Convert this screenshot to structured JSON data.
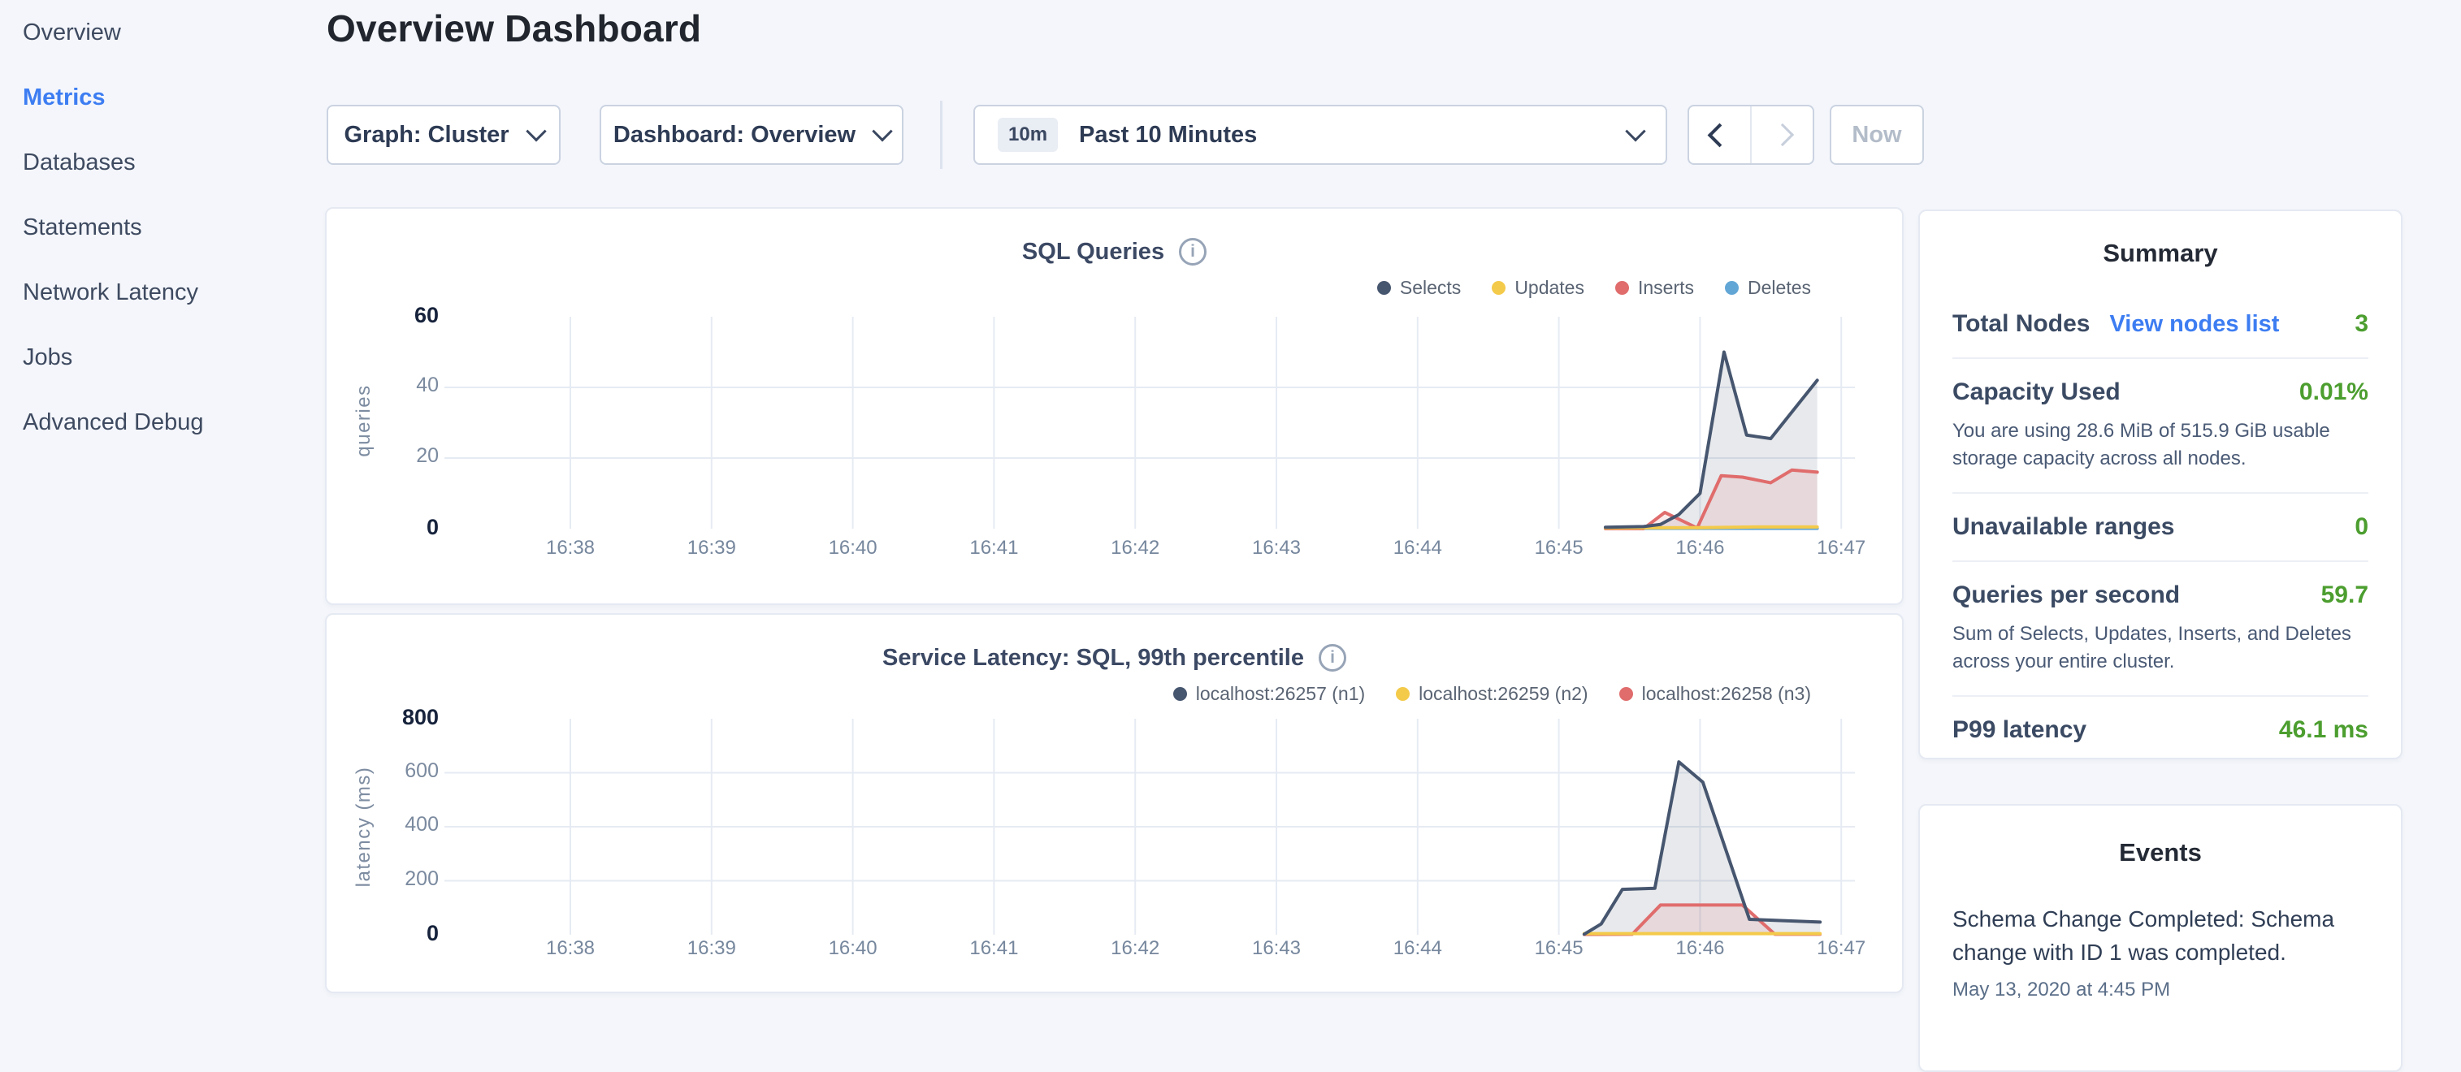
{
  "sidebar": {
    "items": [
      {
        "label": "Overview",
        "active": false
      },
      {
        "label": "Metrics",
        "active": true
      },
      {
        "label": "Databases",
        "active": false
      },
      {
        "label": "Statements",
        "active": false
      },
      {
        "label": "Network Latency",
        "active": false
      },
      {
        "label": "Jobs",
        "active": false
      },
      {
        "label": "Advanced Debug",
        "active": false
      }
    ]
  },
  "header": {
    "title": "Overview Dashboard"
  },
  "controls": {
    "graph_dropdown": "Graph: Cluster",
    "dashboard_dropdown": "Dashboard: Overview",
    "time_range_badge": "10m",
    "time_range_label": "Past 10 Minutes",
    "now_label": "Now"
  },
  "summary": {
    "title": "Summary",
    "rows": [
      {
        "label": "Total Nodes",
        "link": "View nodes list",
        "value": "3"
      },
      {
        "label": "Capacity Used",
        "value": "0.01%",
        "description": "You are using 28.6 MiB of 515.9 GiB usable storage capacity across all nodes."
      },
      {
        "label": "Unavailable ranges",
        "value": "0"
      },
      {
        "label": "Queries per second",
        "value": "59.7",
        "description": "Sum of Selects, Updates, Inserts, and Deletes across your entire cluster."
      },
      {
        "label": "P99 latency",
        "value": "46.1 ms"
      }
    ]
  },
  "events": {
    "title": "Events",
    "items": [
      {
        "message": "Schema Change Completed: Schema change with ID 1 was completed.",
        "timestamp": "May 13, 2020 at 4:45 PM"
      }
    ]
  },
  "icons": {
    "info": "i"
  },
  "colors": {
    "accent_blue": "#3d7df2",
    "value_green": "#4c9e2f",
    "gridline": "#e6ebf3",
    "series_navy": "#47566f",
    "series_yellow": "#f4ca4a",
    "series_red": "#e06c6c",
    "series_blue": "#62a6d6"
  },
  "chart_data": [
    {
      "type": "line",
      "title": "SQL Queries",
      "ylabel": "queries",
      "xlabel": "",
      "ylim": [
        0,
        60
      ],
      "grid": true,
      "legend_position": "top-right",
      "y_ticks": [
        {
          "value": 0,
          "emphasis": true
        },
        {
          "value": 20,
          "emphasis": false
        },
        {
          "value": 40,
          "emphasis": false
        },
        {
          "value": 60,
          "emphasis": true
        }
      ],
      "grid_y": [
        20,
        40
      ],
      "x_ticks": [
        {
          "minute": 38,
          "label": "16:38"
        },
        {
          "minute": 39,
          "label": "16:39"
        },
        {
          "minute": 40,
          "label": "16:40"
        },
        {
          "minute": 41,
          "label": "16:41"
        },
        {
          "minute": 42,
          "label": "16:42"
        },
        {
          "minute": 43,
          "label": "16:43"
        },
        {
          "minute": 44,
          "label": "16:44"
        },
        {
          "minute": 45,
          "label": "16:45"
        },
        {
          "minute": 46,
          "label": "16:46"
        },
        {
          "minute": 47,
          "label": "16:47"
        }
      ],
      "x_unit": "time (16:MM)",
      "series": [
        {
          "name": "Selects",
          "color": "#47566f",
          "points": [
            [
              45.33,
              0.4
            ],
            [
              45.6,
              0.6
            ],
            [
              45.72,
              1.2
            ],
            [
              45.85,
              4
            ],
            [
              46.0,
              10
            ],
            [
              46.17,
              50
            ],
            [
              46.33,
              26.5
            ],
            [
              46.5,
              25.5
            ],
            [
              46.83,
              42
            ]
          ]
        },
        {
          "name": "Updates",
          "color": "#f4ca4a",
          "points": [
            [
              45.33,
              0.2
            ],
            [
              46.0,
              0.3
            ],
            [
              46.4,
              0.5
            ],
            [
              46.83,
              0.5
            ]
          ]
        },
        {
          "name": "Inserts",
          "color": "#e06c6c",
          "points": [
            [
              45.33,
              0
            ],
            [
              45.6,
              0
            ],
            [
              45.75,
              4.6
            ],
            [
              45.98,
              0.2
            ],
            [
              46.15,
              15
            ],
            [
              46.3,
              14.6
            ],
            [
              46.5,
              13
            ],
            [
              46.65,
              16.6
            ],
            [
              46.83,
              16
            ]
          ]
        },
        {
          "name": "Deletes",
          "color": "#62a6d6",
          "points": [
            [
              45.33,
              0.1
            ],
            [
              46.83,
              0.1
            ]
          ]
        }
      ]
    },
    {
      "type": "line",
      "title": "Service Latency: SQL, 99th percentile",
      "ylabel": "latency (ms)",
      "xlabel": "",
      "ylim": [
        0,
        800
      ],
      "grid": true,
      "legend_position": "top-right",
      "y_ticks": [
        {
          "value": 0,
          "emphasis": true
        },
        {
          "value": 200,
          "emphasis": false
        },
        {
          "value": 400,
          "emphasis": false
        },
        {
          "value": 600,
          "emphasis": false
        },
        {
          "value": 800,
          "emphasis": true
        }
      ],
      "grid_y": [
        200,
        400,
        600
      ],
      "x_ticks": [
        {
          "minute": 38,
          "label": "16:38"
        },
        {
          "minute": 39,
          "label": "16:39"
        },
        {
          "minute": 40,
          "label": "16:40"
        },
        {
          "minute": 41,
          "label": "16:41"
        },
        {
          "minute": 42,
          "label": "16:42"
        },
        {
          "minute": 43,
          "label": "16:43"
        },
        {
          "minute": 44,
          "label": "16:44"
        },
        {
          "minute": 45,
          "label": "16:45"
        },
        {
          "minute": 46,
          "label": "16:46"
        },
        {
          "minute": 47,
          "label": "16:47"
        }
      ],
      "x_unit": "time (16:MM)",
      "series": [
        {
          "name": "localhost:26257 (n1)",
          "color": "#47566f",
          "points": [
            [
              45.18,
              2
            ],
            [
              45.3,
              40
            ],
            [
              45.45,
              168
            ],
            [
              45.68,
              172
            ],
            [
              45.85,
              640
            ],
            [
              46.02,
              565
            ],
            [
              46.35,
              57
            ],
            [
              46.55,
              53
            ],
            [
              46.85,
              47
            ]
          ]
        },
        {
          "name": "localhost:26259 (n2)",
          "color": "#f4ca4a",
          "points": [
            [
              45.18,
              4
            ],
            [
              46.85,
              4
            ]
          ]
        },
        {
          "name": "localhost:26258 (n3)",
          "color": "#e06c6c",
          "points": [
            [
              45.18,
              1
            ],
            [
              45.52,
              2
            ],
            [
              45.72,
              110
            ],
            [
              46.3,
              110
            ],
            [
              46.53,
              2
            ],
            [
              46.85,
              2
            ]
          ]
        }
      ]
    }
  ]
}
